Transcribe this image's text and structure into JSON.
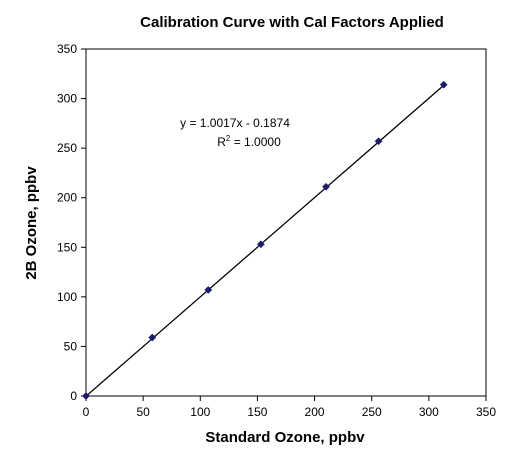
{
  "chart_data": {
    "type": "scatter",
    "title": "Calibration Curve with Cal Factors Applied",
    "xlabel": "Standard Ozone, ppbv",
    "ylabel": "2B Ozone, ppbv",
    "xlim": [
      0,
      350
    ],
    "ylim": [
      0,
      350
    ],
    "xticks": [
      "0",
      "50",
      "100",
      "150",
      "200",
      "250",
      "300",
      "350"
    ],
    "yticks": [
      "0",
      "50",
      "100",
      "150",
      "200",
      "250",
      "300",
      "350"
    ],
    "grid": false,
    "legend": "none",
    "series": [
      {
        "x": [
          0,
          58,
          107,
          153,
          210,
          256,
          313
        ],
        "y": [
          0,
          59,
          107,
          153,
          211,
          257,
          314
        ],
        "marker": "diamond",
        "color": "#1a1a6e"
      }
    ],
    "trendline": {
      "slope": 1.0017,
      "intercept": -0.1874
    },
    "annotations": {
      "equation": "y = 1.0017x - 0.1874",
      "r2_base": "R",
      "r2_sup": "2",
      "r2_rest": " = 1.0000"
    }
  }
}
